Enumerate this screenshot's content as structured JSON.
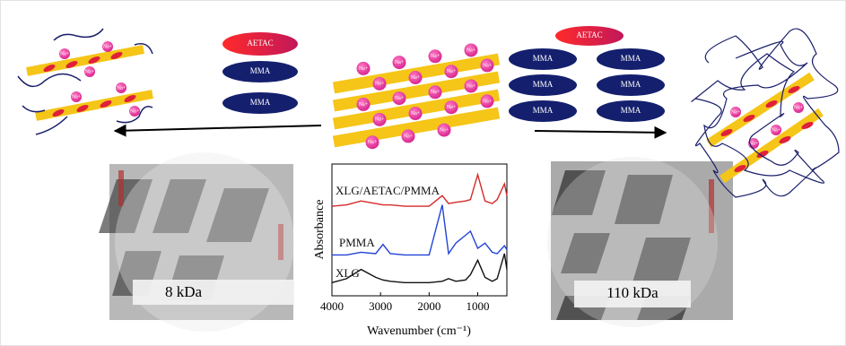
{
  "diagram": {
    "labels": {
      "aetac": "AETAC",
      "mma": "MMA",
      "sodium": "Na+"
    },
    "samples": [
      {
        "label": "8 kDa"
      },
      {
        "label": "110 kDa"
      }
    ]
  },
  "chart_data": {
    "type": "line",
    "x_label": "Wavenumber (cm⁻¹)",
    "y_label": "Absorbance",
    "x": [
      4000,
      3700,
      3400,
      3100,
      2950,
      2800,
      2500,
      2000,
      1730,
      1600,
      1450,
      1250,
      1150,
      1000,
      850,
      700,
      600,
      450,
      400
    ],
    "xlim": [
      4000,
      400
    ],
    "xticks": [
      4000,
      3000,
      2000,
      1000
    ],
    "ylim": [
      0,
      10
    ],
    "series": [
      {
        "name": "XLG/AETAC/PMMA",
        "color": "#d42a2a",
        "values": [
          6.8,
          6.9,
          7.2,
          7.0,
          6.9,
          6.9,
          6.8,
          6.8,
          7.6,
          7.0,
          7.1,
          7.2,
          7.3,
          9.2,
          7.2,
          7.0,
          7.3,
          8.5,
          7.6
        ]
      },
      {
        "name": "PMMA",
        "color": "#2343d6",
        "values": [
          3.1,
          3.1,
          3.3,
          3.2,
          3.9,
          3.2,
          3.1,
          3.1,
          6.9,
          3.2,
          4.0,
          4.6,
          4.9,
          3.6,
          4.0,
          3.3,
          3.2,
          3.8,
          3.5
        ]
      },
      {
        "name": "XLG",
        "color": "#111111",
        "values": [
          1.0,
          1.3,
          2.0,
          1.4,
          1.2,
          1.1,
          1.0,
          1.0,
          1.1,
          1.3,
          1.1,
          1.2,
          1.6,
          2.7,
          1.4,
          1.1,
          1.3,
          3.2,
          2.0
        ]
      }
    ]
  }
}
